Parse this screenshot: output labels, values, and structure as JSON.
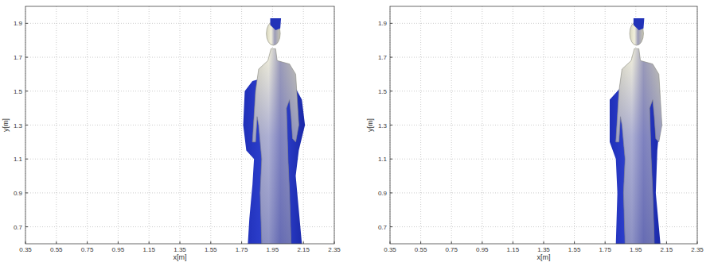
{
  "chart_data": [
    {
      "type": "image",
      "xlabel": "x[m]",
      "ylabel": "y[m]",
      "xlim": [
        0.35,
        2.35
      ],
      "ylim": [
        0.6,
        2.0
      ],
      "xticks": [
        0.35,
        0.55,
        0.75,
        0.95,
        1.15,
        1.35,
        1.55,
        1.75,
        1.95,
        2.15,
        2.35
      ],
      "yticks": [
        0.7,
        0.9,
        1.1,
        1.3,
        1.5,
        1.7,
        1.9
      ],
      "grid": true
    },
    {
      "type": "image",
      "xlabel": "x[m]",
      "ylabel": "y[m]",
      "xlim": [
        0.35,
        2.35
      ],
      "ylim": [
        0.6,
        2.0
      ],
      "xticks": [
        0.35,
        0.55,
        0.75,
        0.95,
        1.15,
        1.35,
        1.55,
        1.75,
        1.95,
        2.15,
        2.35
      ],
      "yticks": [
        0.7,
        0.9,
        1.1,
        1.3,
        1.5,
        1.7,
        1.9
      ],
      "grid": true
    }
  ]
}
